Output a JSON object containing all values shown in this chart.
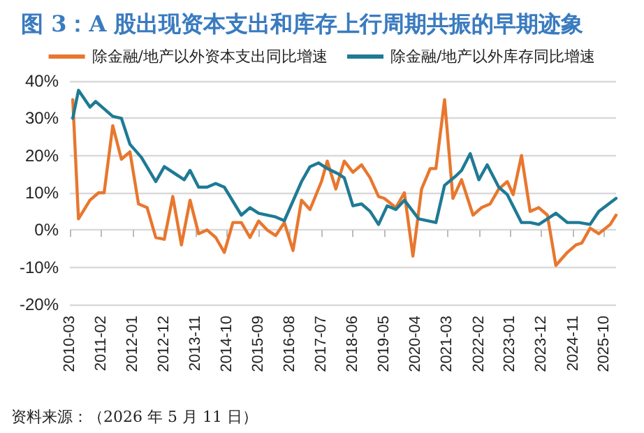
{
  "chart_data": {
    "type": "line",
    "title": "图 3：A 股出现资本支出和库存上行周期共振的早期迹象",
    "annotations": [
      "资料来源：（2026 年 5 月 11 日）"
    ],
    "xlim": [
      "2010-03",
      "2026-02"
    ],
    "xticks": [
      "2010-03",
      "2011-02",
      "2012-01",
      "2012-12",
      "2013-11",
      "2014-10",
      "2015-09",
      "2016-08",
      "2017-07",
      "2018-06",
      "2019-05",
      "2020-04",
      "2021-03",
      "2022-02",
      "2023-01",
      "2023-12",
      "2024-11",
      "2025-10"
    ],
    "ylim": [
      -20,
      40
    ],
    "yticks": [
      {
        "value": -20,
        "label": "-20%"
      },
      {
        "value": -10,
        "label": "-10%"
      },
      {
        "value": 0,
        "label": "0%"
      },
      {
        "value": 10,
        "label": "10%"
      },
      {
        "value": 20,
        "label": "20%"
      },
      {
        "value": 30,
        "label": "30%"
      },
      {
        "value": 40,
        "label": "40%"
      }
    ],
    "grid": "y",
    "legend": "top",
    "marker": "none",
    "line_style": "solid",
    "series": [
      {
        "name": "除金融/地产以外资本支出同比增速",
        "color": "#e8772e",
        "x": [
          "2010-04",
          "2010-06",
          "2010-10",
          "2011-01",
          "2011-03",
          "2011-06",
          "2011-09",
          "2011-12",
          "2012-03",
          "2012-06",
          "2012-09",
          "2012-12",
          "2013-03",
          "2013-06",
          "2013-09",
          "2013-12",
          "2014-03",
          "2014-06",
          "2014-09",
          "2014-12",
          "2015-03",
          "2015-06",
          "2015-09",
          "2015-12",
          "2016-03",
          "2016-06",
          "2016-09",
          "2016-12",
          "2017-03",
          "2017-07",
          "2017-09",
          "2017-12",
          "2018-03",
          "2018-06",
          "2018-09",
          "2018-12",
          "2019-03",
          "2019-05",
          "2019-09",
          "2019-12",
          "2020-03",
          "2020-06",
          "2020-09",
          "2020-11",
          "2021-02",
          "2021-05",
          "2021-08",
          "2021-12",
          "2022-03",
          "2022-06",
          "2022-09",
          "2022-12",
          "2023-02",
          "2023-05",
          "2023-08",
          "2023-11",
          "2024-02",
          "2024-05",
          "2024-09",
          "2024-12",
          "2025-02",
          "2025-05",
          "2025-08",
          "2025-12",
          "2026-02"
        ],
        "values": [
          35,
          3,
          8,
          10,
          10,
          28,
          19,
          21,
          7,
          6,
          -2,
          -2.5,
          9,
          -4,
          8,
          -1,
          0,
          -2,
          -6,
          2,
          2,
          -2,
          2.4,
          0,
          -1.5,
          2,
          -5.5,
          8,
          5.5,
          13,
          18.5,
          11,
          18.5,
          15.5,
          17.5,
          14,
          9,
          8.5,
          6,
          10,
          -7,
          11,
          16.5,
          16.5,
          35,
          8.5,
          13.5,
          4,
          6,
          7,
          11,
          13,
          9.5,
          20,
          5,
          6,
          4,
          -9.5,
          -6,
          -4,
          -3.5,
          0.5,
          -1,
          1.5,
          4
        ]
      },
      {
        "name": "除金融/地产以外库存同比增速",
        "color": "#1f7a94",
        "x": [
          "2010-04",
          "2010-06",
          "2010-10",
          "2010-12",
          "2011-06",
          "2011-09",
          "2011-12",
          "2012-04",
          "2012-09",
          "2012-12",
          "2013-07",
          "2013-09",
          "2013-12",
          "2014-03",
          "2014-06",
          "2014-09",
          "2015-03",
          "2015-06",
          "2015-09",
          "2016-03",
          "2016-06",
          "2016-12",
          "2017-03",
          "2017-06",
          "2017-09",
          "2018-01",
          "2018-03",
          "2018-06",
          "2018-09",
          "2018-12",
          "2019-03",
          "2019-06",
          "2019-09",
          "2019-12",
          "2020-05",
          "2020-11",
          "2021-02",
          "2021-06",
          "2021-08",
          "2021-11",
          "2022-02",
          "2022-05",
          "2022-09",
          "2022-12",
          "2023-05",
          "2023-08",
          "2023-11",
          "2024-02",
          "2024-05",
          "2024-09",
          "2025-01",
          "2025-05",
          "2025-08",
          "2026-02"
        ],
        "values": [
          30,
          37.5,
          33,
          34.5,
          30.5,
          30,
          23,
          19.5,
          13,
          17,
          13.5,
          16,
          11.5,
          11.5,
          12.5,
          11.5,
          4,
          6,
          4.5,
          3.5,
          2.5,
          13,
          17,
          18,
          16.5,
          15,
          14,
          6.5,
          7,
          5,
          1.5,
          6.5,
          5.5,
          8,
          3,
          2,
          12,
          14.5,
          16,
          20.5,
          13.5,
          17.5,
          11.5,
          9.5,
          2,
          2,
          1.5,
          3,
          4.5,
          2,
          2,
          1.5,
          5,
          8.5
        ]
      }
    ]
  }
}
